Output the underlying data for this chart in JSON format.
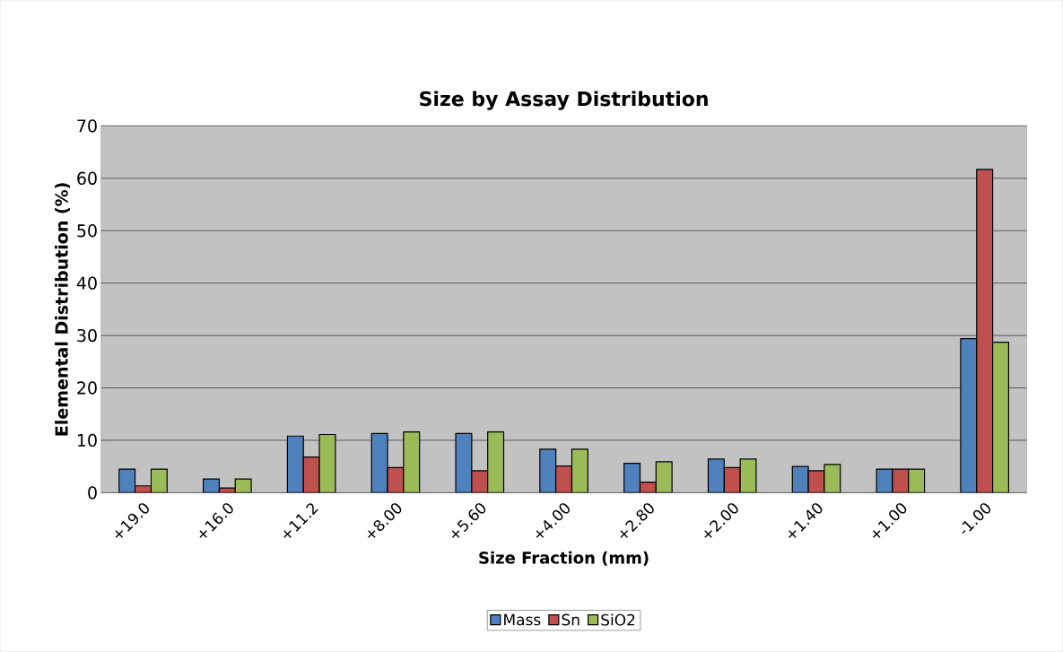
{
  "chart_data": {
    "type": "bar",
    "title": "Size by Assay Distribution",
    "xlabel": "Size Fraction (mm)",
    "ylabel": "Elemental Distribution (%)",
    "categories": [
      "+19.0",
      "+16.0",
      "+11.2",
      "+8.00",
      "+5.60",
      "+4.00",
      "+2.80",
      "+2.00",
      "+1.40",
      "+1.00",
      "-1.00"
    ],
    "series": [
      {
        "name": "Mass",
        "color": "#4f81bd",
        "values": [
          4.5,
          2.6,
          10.8,
          11.3,
          11.3,
          8.3,
          5.6,
          6.4,
          5.0,
          4.5,
          29.4
        ]
      },
      {
        "name": "Sn",
        "color": "#c0504d",
        "values": [
          1.3,
          0.9,
          6.8,
          4.8,
          4.2,
          5.1,
          2.0,
          4.8,
          4.2,
          4.5,
          61.7
        ]
      },
      {
        "name": "SiO2",
        "color": "#9bbb59",
        "values": [
          4.5,
          2.6,
          11.1,
          11.6,
          11.6,
          8.3,
          5.9,
          6.4,
          5.4,
          4.5,
          28.7
        ]
      }
    ],
    "ylim": [
      0,
      70
    ],
    "yticks": [
      0,
      10,
      20,
      30,
      40,
      50,
      60,
      70
    ],
    "grid": "y",
    "legend": "bottom"
  }
}
